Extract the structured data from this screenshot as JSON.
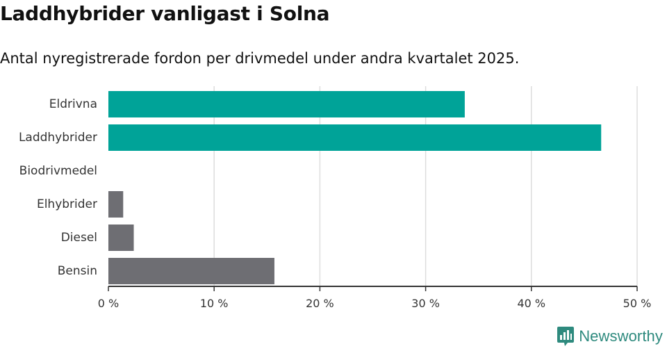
{
  "title": "Laddhybrider vanligast i Solna",
  "subtitle": "Antal nyregistrerade fordon per drivmedel under andra kvartalet 2025.",
  "brand": {
    "name": "Newsworthy",
    "icon": "newsworthy-logo-icon"
  },
  "colors": {
    "highlight": "#00a398",
    "default": "#6e6e73",
    "grid": "#dddddd",
    "axis": "#333333"
  },
  "chart_data": {
    "type": "bar",
    "orientation": "horizontal",
    "categories": [
      "Eldrivna",
      "Laddhybrider",
      "Biodrivmedel",
      "Elhybrider",
      "Diesel",
      "Bensin"
    ],
    "values": [
      33.7,
      46.6,
      0,
      1.4,
      2.4,
      15.7
    ],
    "highlighted": [
      true,
      true,
      false,
      false,
      false,
      false
    ],
    "xlim": [
      0,
      50
    ],
    "xticks": [
      0,
      10,
      20,
      30,
      40,
      50
    ],
    "xtick_labels": [
      "0 %",
      "10 %",
      "20 %",
      "30 %",
      "40 %",
      "50 %"
    ],
    "grid": true
  }
}
